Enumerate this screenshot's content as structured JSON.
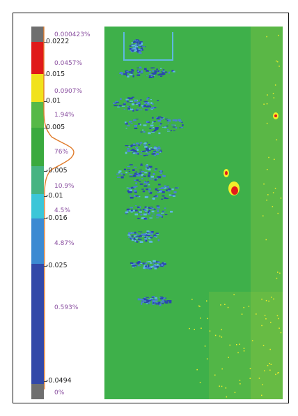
{
  "colorbar": {
    "segments": [
      {
        "name": "gray-top",
        "color": "#6f6f6f"
      },
      {
        "name": "red",
        "color": "#e01a1a"
      },
      {
        "name": "yellow",
        "color": "#f1e21c"
      },
      {
        "name": "green-light",
        "color": "#56b947"
      },
      {
        "name": "green",
        "color": "#3aaa3e"
      },
      {
        "name": "green-teal",
        "color": "#46b482"
      },
      {
        "name": "cyan",
        "color": "#3cc6d8"
      },
      {
        "name": "blue-light",
        "color": "#3c8ad2"
      },
      {
        "name": "blue-mid",
        "color": "#3b6ec4"
      },
      {
        "name": "blue-dark",
        "color": "#3248a8"
      },
      {
        "name": "gray-bottom",
        "color": "#6f6f6f"
      }
    ],
    "ticks": [
      "0.0222",
      "0.015",
      "0.01",
      "0.005",
      "-0.005",
      "-0.01",
      "-0.016",
      "-0.025",
      "-0.0494"
    ],
    "percents": [
      "0.000423%",
      "0.0457%",
      "0.0907%",
      "1.94%",
      "76%",
      "10.9%",
      "4.5%",
      "4.87%",
      "0.593%",
      "0%"
    ]
  },
  "map_colors": {
    "base": "#3eb04a",
    "blue": "#4a7fd6",
    "dark_blue": "#2a45b0",
    "cyan": "#5fb8e0",
    "yellow": "#f3ee2a",
    "red": "#e41b1b",
    "yellow_green": "#8ec63f"
  },
  "histogram": {
    "color": "#e07b2a"
  }
}
